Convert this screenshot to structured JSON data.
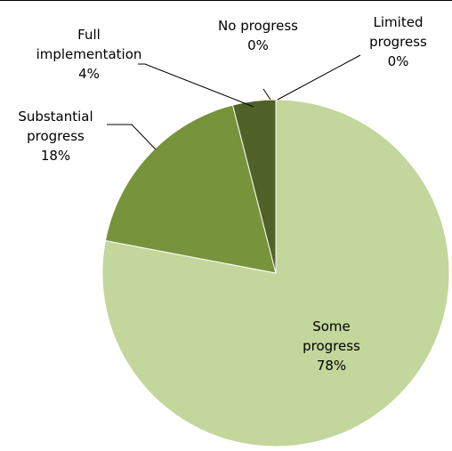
{
  "chart_data": {
    "type": "pie",
    "categories": [
      "No progress",
      "Limited progress",
      "Some progress",
      "Substantial progress",
      "Full implementation"
    ],
    "values": [
      0,
      0,
      78,
      18,
      4
    ],
    "value_labels": [
      "0%",
      "0%",
      "78%",
      "18%",
      "4%"
    ],
    "colors": [
      "#4f81bd",
      "#9bbb59",
      "#c3d69b",
      "#77933c",
      "#4f6228"
    ]
  }
}
